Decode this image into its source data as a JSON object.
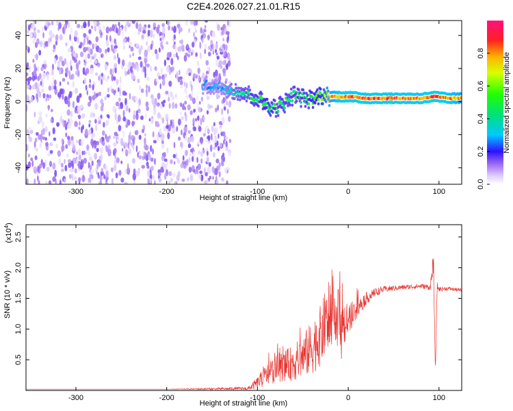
{
  "title": "C2E4.2026.027.21.01.R15",
  "chart_data": [
    {
      "type": "heatmap",
      "xlabel": "Height of straight line (km)",
      "ylabel": "Frequency (Hz)",
      "xlim": [
        -355,
        125
      ],
      "ylim": [
        -50,
        49
      ],
      "xticks": [
        -300,
        -200,
        -100,
        0,
        100
      ],
      "yticks": [
        -40,
        -20,
        0,
        20,
        40
      ],
      "xtick_labels": [
        "-300",
        "-200",
        "-100",
        "0",
        "100"
      ],
      "ytick_labels": [
        "-40",
        "-20",
        "0",
        "20",
        "40"
      ],
      "noise_region": {
        "x": [
          -355,
          -130
        ],
        "freq": [
          -50,
          49
        ],
        "amplitude": [
          0.02,
          0.15
        ]
      },
      "signal_trace": {
        "x": [
          -160,
          -140,
          -120,
          -100,
          -90,
          -80,
          -70,
          -60,
          -50,
          -40,
          -30,
          -20,
          0,
          20,
          40,
          60,
          80,
          95,
          110,
          125
        ],
        "freq": [
          10,
          9,
          6,
          2,
          -2,
          -4,
          -1,
          4,
          2,
          1,
          4,
          3,
          3,
          2,
          2,
          2,
          2,
          3,
          2,
          2
        ],
        "amplitude": [
          0.3,
          0.3,
          0.45,
          0.5,
          0.55,
          0.5,
          0.5,
          0.5,
          0.5,
          0.55,
          0.6,
          0.8,
          0.9,
          0.92,
          0.9,
          0.88,
          0.85,
          0.95,
          0.85,
          0.8
        ]
      },
      "colorbar": {
        "label": "Normalized spectral amplitude",
        "range": [
          0,
          1
        ],
        "ticks": [
          "0.0",
          "0.2",
          "0.4",
          "0.6",
          "0.8"
        ]
      }
    },
    {
      "type": "line",
      "xlabel": "Height of straight line (km)",
      "ylabel": "SNR (10 * v/v)",
      "exponent_label": "(x10",
      "exponent_power": "4",
      "xlim": [
        -355,
        125
      ],
      "ylim": [
        0,
        27000
      ],
      "xticks": [
        -300,
        -200,
        -100,
        0,
        100
      ],
      "yticks": [
        5000,
        10000,
        15000,
        20000,
        25000
      ],
      "xtick_labels": [
        "-300",
        "-200",
        "-100",
        "0",
        "100"
      ],
      "ytick_labels": [
        "0.5",
        "1.0",
        "1.5",
        "2.0",
        "2.5"
      ],
      "series": [
        {
          "name": "SNR",
          "color": "#e8332f",
          "x": [
            -355,
            -200,
            -110,
            -100,
            -90,
            -80,
            -70,
            -60,
            -50,
            -40,
            -30,
            -25,
            -20,
            -15,
            -10,
            -5,
            0,
            10,
            20,
            30,
            40,
            60,
            80,
            90,
            94,
            96,
            98,
            100,
            110,
            125
          ],
          "y": [
            200,
            200,
            300,
            1200,
            2500,
            3500,
            4000,
            4500,
            5500,
            7000,
            9000,
            11000,
            13000,
            11500,
            12000,
            10500,
            11500,
            13500,
            15000,
            16000,
            16500,
            16800,
            17000,
            16800,
            20000,
            3000,
            17000,
            16500,
            16600,
            16300
          ],
          "noise": [
            0,
            0,
            300,
            1000,
            1800,
            2200,
            2500,
            3000,
            3500,
            4500,
            5000,
            5500,
            5500,
            5000,
            4500,
            3500,
            2500,
            1800,
            1000,
            700,
            500,
            400,
            400,
            500,
            2000,
            0,
            800,
            400,
            300,
            300
          ]
        }
      ]
    }
  ]
}
